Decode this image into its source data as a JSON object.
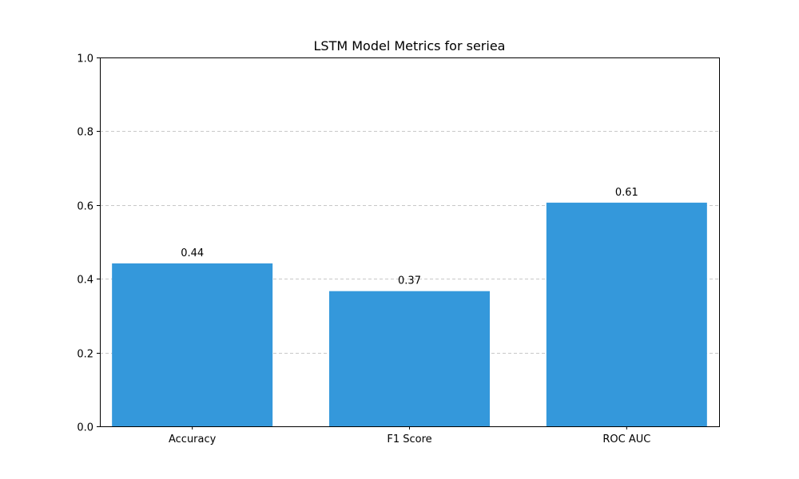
{
  "chart_data": {
    "type": "bar",
    "title": "LSTM Model Metrics for seriea",
    "xlabel": "",
    "ylabel": "",
    "categories": [
      "Accuracy",
      "F1 Score",
      "ROC AUC"
    ],
    "values": [
      0.4417,
      0.3665,
      0.6064
    ],
    "data_labels": [
      "0.44",
      "0.37",
      "0.61"
    ],
    "ylim": [
      0,
      1
    ],
    "yticks": [
      0.0,
      0.2,
      0.4,
      0.6,
      0.8,
      1.0
    ],
    "ytick_labels": [
      "0.0",
      "0.2",
      "0.4",
      "0.6",
      "0.8",
      "1.0"
    ],
    "grid": "y-dashed",
    "bar_color": "#3498db",
    "grid_color": "#c8c8c8"
  }
}
